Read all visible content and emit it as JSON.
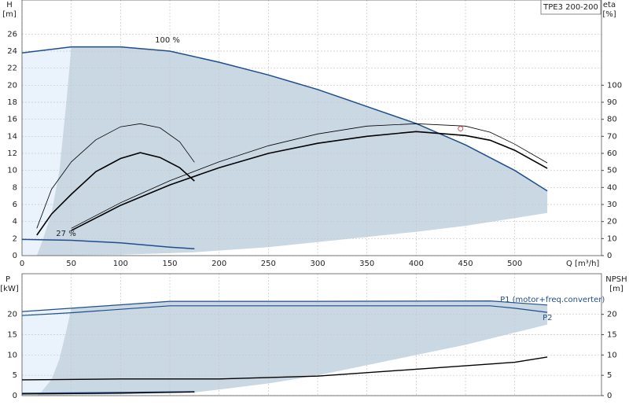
{
  "chart_data": [
    {
      "type": "line",
      "title": "TPE3 200-200",
      "ylabel": "H",
      "yunit": "[m]",
      "y2label": "eta",
      "y2unit": "[%]",
      "xlabel": "Q [m³/h]",
      "annotations": [
        "100 %",
        "27 %"
      ],
      "xlim": [
        0,
        588
      ],
      "xticks": [
        0,
        50,
        100,
        150,
        200,
        250,
        300,
        350,
        400,
        450,
        500
      ],
      "ylim": [
        0,
        30
      ],
      "yticks": [
        0,
        2,
        4,
        6,
        8,
        10,
        12,
        14,
        16,
        18,
        20,
        22,
        24,
        26
      ],
      "y2lim": [
        0,
        150
      ],
      "y2ticks": [
        0,
        10,
        20,
        30,
        40,
        50,
        60,
        70,
        80,
        90,
        100
      ],
      "grid": true,
      "regions": [
        {
          "color": "#eaf3fb",
          "x": [
            0,
            0,
            50,
            50
          ],
          "y": [
            0,
            23.8,
            24.5,
            0
          ]
        },
        {
          "color": "#cad8e4",
          "x": [
            50,
            100,
            150,
            200,
            250,
            300,
            350,
            400,
            450,
            500,
            533,
            533,
            500,
            450,
            400,
            350,
            300,
            250,
            175,
            100,
            15,
            20,
            30,
            38,
            45
          ],
          "y": [
            24.5,
            24.5,
            24,
            22.7,
            21.2,
            19.5,
            17.5,
            15.5,
            13,
            10,
            7.6,
            5.0,
            4.4,
            3.5,
            2.8,
            2.2,
            1.6,
            1.0,
            0.4,
            0.1,
            0,
            1.5,
            5,
            10,
            18
          ]
        }
      ],
      "series": [
        {
          "color": "#1f4e8c",
          "line_width": 1.5,
          "x": [
            0,
            50,
            100,
            150,
            200,
            250,
            300,
            350,
            400,
            450,
            500,
            533
          ],
          "values": [
            23.8,
            24.5,
            24.5,
            24,
            22.7,
            21.2,
            19.5,
            17.5,
            15.5,
            13,
            10,
            7.6
          ]
        },
        {
          "color": "#1f4e8c",
          "line_width": 1.5,
          "x": [
            0,
            50,
            100,
            150,
            175
          ],
          "values": [
            1.9,
            1.8,
            1.5,
            1.0,
            0.8
          ]
        },
        {
          "color": "#000000",
          "line_width": 0.8,
          "axis": "y2",
          "x": [
            50,
            100,
            150,
            200,
            250,
            300,
            350,
            400,
            450,
            475,
            500,
            533
          ],
          "values": [
            16,
            31,
            44,
            55,
            64.5,
            71.4,
            76,
            77.4,
            76,
            72.4,
            65.4,
            54.4
          ]
        },
        {
          "color": "#000000",
          "line_width": 1.6,
          "axis": "y2",
          "x": [
            50,
            100,
            150,
            200,
            250,
            300,
            350,
            400,
            450,
            475,
            500,
            533
          ],
          "values": [
            14.7,
            29.5,
            41.5,
            51.6,
            60,
            65.9,
            70,
            72.8,
            70.5,
            67.7,
            61.8,
            51.2
          ]
        },
        {
          "color": "#000000",
          "line_width": 0.8,
          "axis": "y2",
          "x": [
            15,
            30,
            50,
            75,
            100,
            120,
            140,
            160,
            175
          ],
          "values": [
            16,
            39,
            55,
            68,
            75.6,
            77.4,
            75,
            66.8,
            54.8
          ]
        },
        {
          "color": "#000000",
          "line_width": 1.6,
          "axis": "y2",
          "x": [
            15,
            30,
            50,
            75,
            100,
            120,
            140,
            160,
            175
          ],
          "values": [
            12,
            24.4,
            36,
            49.3,
            57,
            60.4,
            57.6,
            51.6,
            43.8
          ]
        }
      ],
      "points": [
        {
          "color": "#e05050",
          "x": 445,
          "y": 14.9
        }
      ]
    },
    {
      "type": "line",
      "ylabel": "P",
      "yunit": "[kW]",
      "y2label": "NPSH",
      "y2unit": "[m]",
      "xlim": [
        0,
        588
      ],
      "xticks": [
        0,
        50,
        100,
        150,
        200,
        250,
        300,
        350,
        400,
        450,
        500
      ],
      "ylim": [
        0,
        30
      ],
      "yticks": [
        0,
        5,
        10,
        15,
        20
      ],
      "y2lim": [
        0,
        30
      ],
      "y2ticks": [
        0,
        5,
        10,
        15,
        20
      ],
      "grid": true,
      "regions": [
        {
          "color": "#eaf3fb",
          "x": [
            0,
            0,
            50,
            50
          ],
          "y": [
            0,
            20.7,
            21.5,
            0
          ]
        },
        {
          "color": "#cad8e4",
          "x": [
            50,
            150,
            300,
            475,
            533,
            533,
            450,
            400,
            350,
            300,
            250,
            200,
            175,
            100,
            15,
            20,
            30,
            38,
            45
          ],
          "y": [
            21.5,
            23.2,
            23.2,
            23.3,
            22.3,
            17.5,
            12.5,
            10,
            7.5,
            5,
            3,
            1.5,
            0.8,
            0.3,
            0,
            1,
            4,
            9,
            16
          ]
        }
      ],
      "series": [
        {
          "name": "P1 (motor+freq.converter)",
          "color": "#1f4e8c",
          "line_width": 1.2,
          "x": [
            0,
            50,
            150,
            300,
            475,
            533
          ],
          "values": [
            20.7,
            21.5,
            23.2,
            23.2,
            23.3,
            22.3
          ]
        },
        {
          "name": "P2",
          "color": "#1f4e8c",
          "line_width": 1.2,
          "x": [
            0,
            50,
            150,
            475,
            500,
            533
          ],
          "values": [
            19.7,
            20.4,
            22.1,
            22.1,
            21.5,
            20.5
          ]
        },
        {
          "color": "#000000",
          "line_width": 1.4,
          "axis": "y2",
          "x": [
            0,
            100,
            200,
            300,
            400,
            500,
            533
          ],
          "values": [
            3.9,
            4.1,
            4.1,
            4.8,
            6.5,
            8.2,
            9.5
          ]
        },
        {
          "color": "#1f4e8c",
          "line_width": 1.2,
          "x": [
            0,
            100,
            175
          ],
          "values": [
            0.6,
            0.8,
            1.0
          ]
        },
        {
          "color": "#000000",
          "line_width": 1.2,
          "x": [
            0,
            100,
            175
          ],
          "values": [
            0.4,
            0.6,
            0.9
          ]
        }
      ]
    }
  ]
}
